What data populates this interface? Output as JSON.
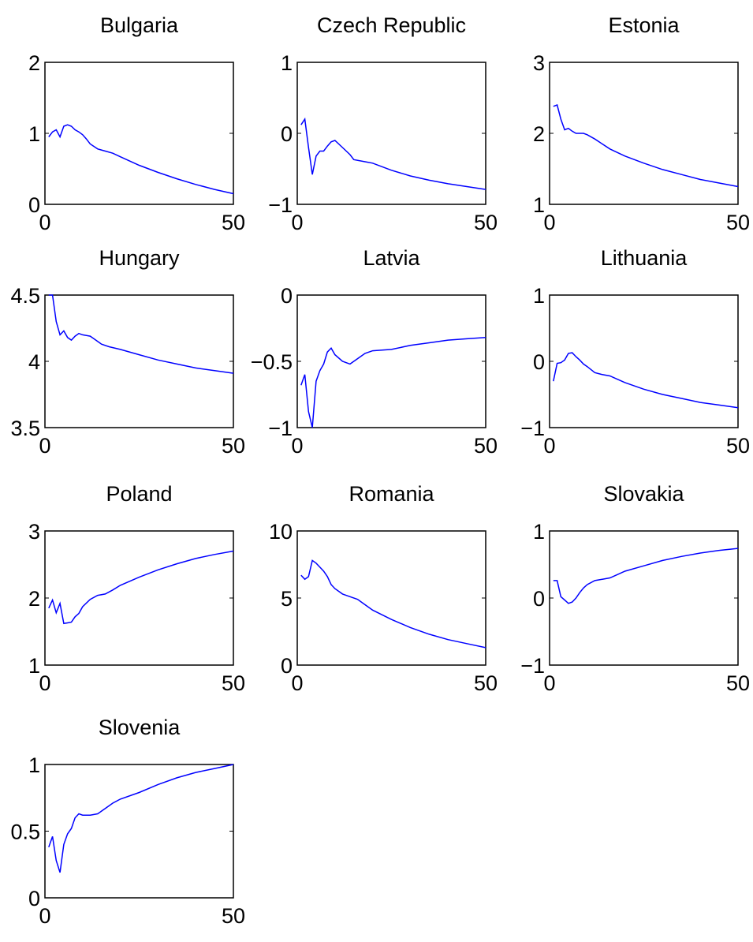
{
  "chart_data": [
    {
      "type": "line",
      "title": "Bulgaria",
      "color": "#0000ff",
      "x": [
        1,
        2,
        3,
        4,
        5,
        6,
        7,
        8,
        9,
        10,
        11,
        12,
        14,
        16,
        18,
        20,
        25,
        30,
        35,
        40,
        45,
        50
      ],
      "values": [
        0.95,
        1.02,
        1.05,
        0.95,
        1.1,
        1.12,
        1.1,
        1.05,
        1.02,
        0.98,
        0.92,
        0.85,
        0.78,
        0.75,
        0.72,
        0.67,
        0.55,
        0.45,
        0.36,
        0.28,
        0.21,
        0.15
      ],
      "xlim": [
        0,
        50
      ],
      "xticks": [
        0,
        50
      ],
      "ylim": [
        0,
        2
      ],
      "yticks": [
        0,
        1,
        2
      ]
    },
    {
      "type": "line",
      "title": "Czech Republic",
      "color": "#0000ff",
      "x": [
        1,
        2,
        3,
        4,
        5,
        6,
        7,
        8,
        9,
        10,
        12,
        14,
        15,
        18,
        20,
        25,
        30,
        35,
        40,
        45,
        50
      ],
      "values": [
        0.12,
        0.2,
        -0.2,
        -0.58,
        -0.32,
        -0.25,
        -0.25,
        -0.18,
        -0.12,
        -0.1,
        -0.2,
        -0.3,
        -0.37,
        -0.4,
        -0.42,
        -0.52,
        -0.6,
        -0.66,
        -0.71,
        -0.75,
        -0.79
      ],
      "xlim": [
        0,
        50
      ],
      "xticks": [
        0,
        50
      ],
      "ylim": [
        -1,
        1
      ],
      "yticks": [
        {
          "value": -1,
          "label": "−1"
        },
        0,
        1
      ]
    },
    {
      "type": "line",
      "title": "Estonia",
      "color": "#0000ff",
      "x": [
        1,
        2,
        3,
        4,
        5,
        6,
        7,
        8,
        9,
        10,
        12,
        14,
        16,
        18,
        20,
        25,
        30,
        35,
        40,
        45,
        50
      ],
      "values": [
        2.38,
        2.4,
        2.2,
        2.05,
        2.07,
        2.03,
        2.0,
        2.0,
        2.0,
        1.98,
        1.92,
        1.85,
        1.78,
        1.73,
        1.68,
        1.58,
        1.49,
        1.42,
        1.35,
        1.3,
        1.25
      ],
      "xlim": [
        0,
        50
      ],
      "xticks": [
        0,
        50
      ],
      "ylim": [
        1,
        3
      ],
      "yticks": [
        1,
        2,
        3
      ]
    },
    {
      "type": "line",
      "title": "Hungary",
      "color": "#0000ff",
      "x": [
        1,
        2,
        3,
        4,
        5,
        6,
        7,
        8,
        9,
        10,
        12,
        13,
        15,
        17,
        20,
        25,
        30,
        35,
        40,
        45,
        50
      ],
      "values": [
        4.5,
        4.5,
        4.3,
        4.2,
        4.23,
        4.18,
        4.16,
        4.19,
        4.21,
        4.2,
        4.19,
        4.17,
        4.13,
        4.11,
        4.09,
        4.05,
        4.01,
        3.98,
        3.95,
        3.93,
        3.91
      ],
      "xlim": [
        0,
        50
      ],
      "xticks": [
        0,
        50
      ],
      "ylim": [
        3.5,
        4.5
      ],
      "yticks": [
        3.5,
        4,
        4.5
      ]
    },
    {
      "type": "line",
      "title": "Latvia",
      "color": "#0000ff",
      "x": [
        1,
        2,
        3,
        4,
        5,
        6,
        7,
        8,
        9,
        10,
        12,
        14,
        16,
        18,
        20,
        25,
        30,
        35,
        40,
        45,
        50
      ],
      "values": [
        -0.68,
        -0.6,
        -0.88,
        -1.0,
        -0.65,
        -0.57,
        -0.52,
        -0.43,
        -0.4,
        -0.45,
        -0.5,
        -0.52,
        -0.48,
        -0.44,
        -0.42,
        -0.41,
        -0.38,
        -0.36,
        -0.34,
        -0.33,
        -0.32
      ],
      "xlim": [
        0,
        50
      ],
      "xticks": [
        0,
        50
      ],
      "ylim": [
        -1,
        0
      ],
      "yticks": [
        {
          "value": -1,
          "label": "−1"
        },
        {
          "value": -0.5,
          "label": "−0.5"
        },
        0
      ]
    },
    {
      "type": "line",
      "title": "Lithuania",
      "color": "#0000ff",
      "x": [
        1,
        2,
        3,
        4,
        5,
        6,
        7,
        8,
        9,
        10,
        12,
        14,
        16,
        18,
        20,
        25,
        30,
        35,
        40,
        45,
        50
      ],
      "values": [
        -0.3,
        -0.03,
        -0.02,
        0.02,
        0.12,
        0.13,
        0.07,
        0.02,
        -0.04,
        -0.08,
        -0.17,
        -0.2,
        -0.22,
        -0.27,
        -0.32,
        -0.42,
        -0.5,
        -0.56,
        -0.62,
        -0.66,
        -0.7
      ],
      "xlim": [
        0,
        50
      ],
      "xticks": [
        0,
        50
      ],
      "ylim": [
        -1,
        1
      ],
      "yticks": [
        {
          "value": -1,
          "label": "−1"
        },
        0,
        1
      ]
    },
    {
      "type": "line",
      "title": "Poland",
      "color": "#0000ff",
      "x": [
        1,
        2,
        3,
        4,
        5,
        6,
        7,
        8,
        9,
        10,
        12,
        14,
        16,
        18,
        20,
        25,
        30,
        35,
        40,
        45,
        50
      ],
      "values": [
        1.85,
        1.97,
        1.78,
        1.92,
        1.62,
        1.63,
        1.64,
        1.72,
        1.77,
        1.87,
        1.98,
        2.04,
        2.06,
        2.12,
        2.19,
        2.31,
        2.42,
        2.51,
        2.59,
        2.65,
        2.7
      ],
      "xlim": [
        0,
        50
      ],
      "xticks": [
        0,
        50
      ],
      "ylim": [
        1,
        3
      ],
      "yticks": [
        1,
        2,
        3
      ]
    },
    {
      "type": "line",
      "title": "Romania",
      "color": "#0000ff",
      "x": [
        1,
        2,
        3,
        4,
        5,
        6,
        7,
        8,
        9,
        10,
        12,
        14,
        16,
        18,
        20,
        25,
        30,
        35,
        40,
        45,
        50
      ],
      "values": [
        6.7,
        6.4,
        6.6,
        7.8,
        7.6,
        7.3,
        7.0,
        6.6,
        6.0,
        5.7,
        5.3,
        5.1,
        4.9,
        4.5,
        4.1,
        3.4,
        2.8,
        2.3,
        1.9,
        1.6,
        1.3
      ],
      "xlim": [
        0,
        50
      ],
      "xticks": [
        0,
        50
      ],
      "ylim": [
        0,
        10
      ],
      "yticks": [
        0,
        5,
        10
      ]
    },
    {
      "type": "line",
      "title": "Slovakia",
      "color": "#0000ff",
      "x": [
        1,
        2,
        3,
        4,
        5,
        6,
        7,
        8,
        9,
        10,
        12,
        14,
        16,
        18,
        20,
        25,
        30,
        35,
        40,
        45,
        50
      ],
      "values": [
        0.26,
        0.26,
        0.02,
        -0.03,
        -0.08,
        -0.06,
        0.0,
        0.08,
        0.15,
        0.2,
        0.26,
        0.28,
        0.3,
        0.35,
        0.4,
        0.48,
        0.56,
        0.62,
        0.67,
        0.71,
        0.74
      ],
      "xlim": [
        0,
        50
      ],
      "xticks": [
        0,
        50
      ],
      "ylim": [
        -1,
        1
      ],
      "yticks": [
        {
          "value": -1,
          "label": "−1"
        },
        0,
        1
      ]
    },
    {
      "type": "line",
      "title": "Slovenia",
      "color": "#0000ff",
      "x": [
        1,
        2,
        3,
        4,
        5,
        6,
        7,
        8,
        9,
        10,
        12,
        14,
        16,
        18,
        20,
        25,
        30,
        35,
        40,
        45,
        50
      ],
      "values": [
        0.38,
        0.46,
        0.28,
        0.19,
        0.4,
        0.48,
        0.52,
        0.6,
        0.63,
        0.62,
        0.62,
        0.63,
        0.67,
        0.71,
        0.74,
        0.79,
        0.85,
        0.9,
        0.94,
        0.97,
        1.0
      ],
      "xlim": [
        0,
        50
      ],
      "xticks": [
        0,
        50
      ],
      "ylim": [
        0,
        1
      ],
      "yticks": [
        0,
        0.5,
        1
      ]
    }
  ]
}
